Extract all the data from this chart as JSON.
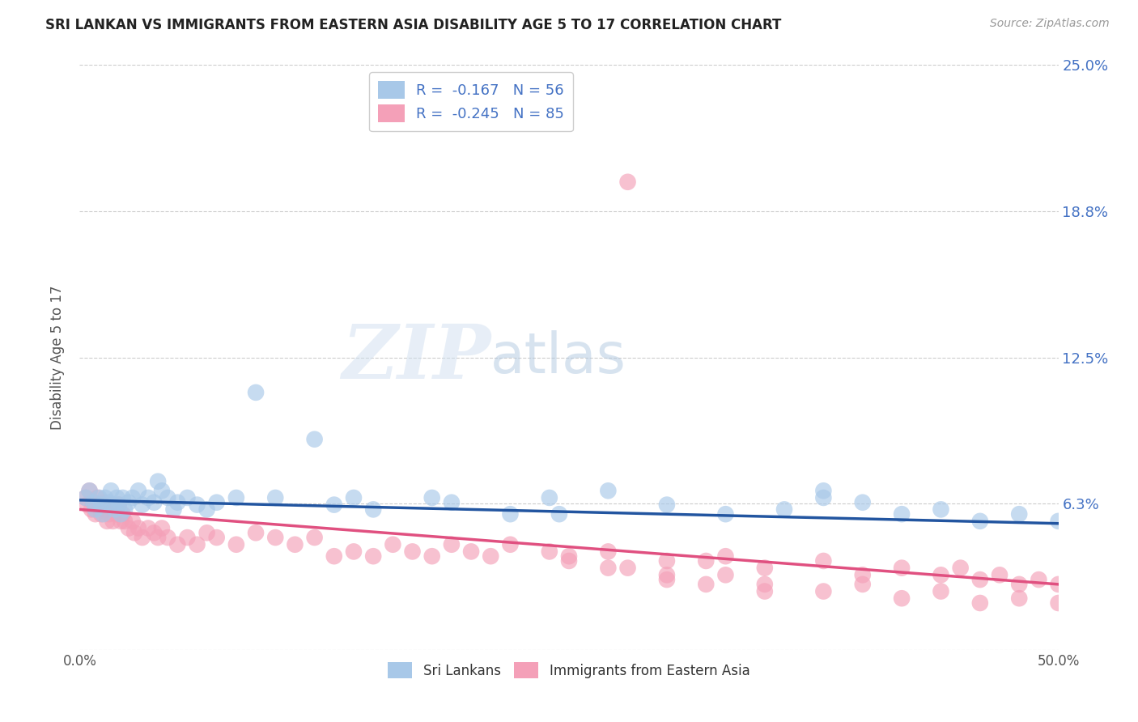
{
  "title": "SRI LANKAN VS IMMIGRANTS FROM EASTERN ASIA DISABILITY AGE 5 TO 17 CORRELATION CHART",
  "source": "Source: ZipAtlas.com",
  "ylabel": "Disability Age 5 to 17",
  "xlim": [
    0,
    0.5
  ],
  "ylim": [
    0,
    0.25
  ],
  "ytick_vals": [
    0.0,
    0.0625,
    0.125,
    0.1875,
    0.25
  ],
  "ytick_labels": [
    "",
    "6.3%",
    "12.5%",
    "18.8%",
    "25.0%"
  ],
  "xtick_vals": [
    0.0,
    0.125,
    0.25,
    0.375,
    0.5
  ],
  "xtick_labels": [
    "0.0%",
    "",
    "",
    "",
    "50.0%"
  ],
  "blue_r": -0.167,
  "blue_n": 56,
  "pink_r": -0.245,
  "pink_n": 85,
  "blue_color": "#a8c8e8",
  "pink_color": "#f4a0b8",
  "blue_line_color": "#2255a0",
  "pink_line_color": "#e05080",
  "label_blue": "Sri Lankans",
  "label_pink": "Immigrants from Eastern Asia",
  "watermark_zip": "ZIP",
  "watermark_atlas": "atlas",
  "blue_trend_x0": 0.0,
  "blue_trend_y0": 0.064,
  "blue_trend_x1": 0.5,
  "blue_trend_y1": 0.054,
  "pink_trend_x0": 0.0,
  "pink_trend_y0": 0.06,
  "pink_trend_x1": 0.5,
  "pink_trend_y1": 0.028,
  "blue_scatter_x": [
    0.003,
    0.005,
    0.007,
    0.008,
    0.01,
    0.011,
    0.012,
    0.013,
    0.015,
    0.016,
    0.017,
    0.018,
    0.019,
    0.02,
    0.021,
    0.022,
    0.023,
    0.025,
    0.027,
    0.03,
    0.032,
    0.035,
    0.038,
    0.04,
    0.042,
    0.045,
    0.048,
    0.05,
    0.055,
    0.06,
    0.065,
    0.07,
    0.08,
    0.09,
    0.1,
    0.12,
    0.13,
    0.14,
    0.15,
    0.18,
    0.19,
    0.22,
    0.24,
    0.27,
    0.3,
    0.33,
    0.36,
    0.38,
    0.4,
    0.42,
    0.44,
    0.46,
    0.48,
    0.5,
    0.245,
    0.38
  ],
  "blue_scatter_y": [
    0.065,
    0.068,
    0.063,
    0.06,
    0.065,
    0.062,
    0.058,
    0.065,
    0.063,
    0.068,
    0.062,
    0.06,
    0.065,
    0.062,
    0.058,
    0.065,
    0.06,
    0.063,
    0.065,
    0.068,
    0.062,
    0.065,
    0.063,
    0.072,
    0.068,
    0.065,
    0.06,
    0.063,
    0.065,
    0.062,
    0.06,
    0.063,
    0.065,
    0.11,
    0.065,
    0.09,
    0.062,
    0.065,
    0.06,
    0.065,
    0.063,
    0.058,
    0.065,
    0.068,
    0.062,
    0.058,
    0.06,
    0.065,
    0.063,
    0.058,
    0.06,
    0.055,
    0.058,
    0.055,
    0.058,
    0.068
  ],
  "pink_scatter_x": [
    0.003,
    0.004,
    0.005,
    0.006,
    0.007,
    0.008,
    0.009,
    0.01,
    0.011,
    0.012,
    0.013,
    0.014,
    0.015,
    0.016,
    0.017,
    0.018,
    0.019,
    0.02,
    0.021,
    0.022,
    0.023,
    0.025,
    0.027,
    0.028,
    0.03,
    0.032,
    0.035,
    0.038,
    0.04,
    0.042,
    0.045,
    0.05,
    0.055,
    0.06,
    0.065,
    0.07,
    0.08,
    0.09,
    0.1,
    0.11,
    0.12,
    0.13,
    0.14,
    0.15,
    0.16,
    0.17,
    0.18,
    0.19,
    0.2,
    0.21,
    0.22,
    0.24,
    0.25,
    0.27,
    0.28,
    0.3,
    0.32,
    0.33,
    0.35,
    0.38,
    0.4,
    0.42,
    0.44,
    0.45,
    0.46,
    0.47,
    0.48,
    0.49,
    0.5,
    0.28,
    0.3,
    0.33,
    0.35,
    0.38,
    0.4,
    0.42,
    0.44,
    0.46,
    0.48,
    0.5,
    0.25,
    0.27,
    0.3,
    0.32,
    0.35
  ],
  "pink_scatter_y": [
    0.065,
    0.062,
    0.068,
    0.06,
    0.063,
    0.058,
    0.065,
    0.062,
    0.058,
    0.063,
    0.06,
    0.055,
    0.058,
    0.062,
    0.055,
    0.06,
    0.058,
    0.062,
    0.055,
    0.058,
    0.055,
    0.052,
    0.055,
    0.05,
    0.052,
    0.048,
    0.052,
    0.05,
    0.048,
    0.052,
    0.048,
    0.045,
    0.048,
    0.045,
    0.05,
    0.048,
    0.045,
    0.05,
    0.048,
    0.045,
    0.048,
    0.04,
    0.042,
    0.04,
    0.045,
    0.042,
    0.04,
    0.045,
    0.042,
    0.04,
    0.045,
    0.042,
    0.04,
    0.042,
    0.2,
    0.038,
    0.038,
    0.04,
    0.035,
    0.038,
    0.032,
    0.035,
    0.032,
    0.035,
    0.03,
    0.032,
    0.028,
    0.03,
    0.028,
    0.035,
    0.03,
    0.032,
    0.028,
    0.025,
    0.028,
    0.022,
    0.025,
    0.02,
    0.022,
    0.02,
    0.038,
    0.035,
    0.032,
    0.028,
    0.025
  ]
}
